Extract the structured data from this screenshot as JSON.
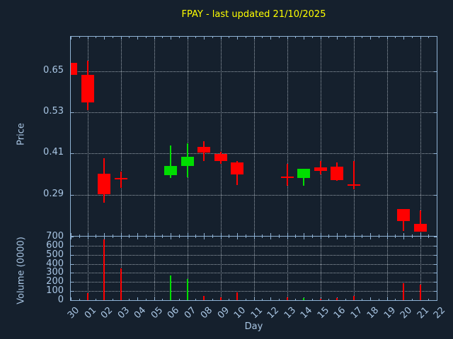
{
  "chart_data": {
    "type": "candlestick_with_volume",
    "title": "FPAY - last updated 21/10/2025",
    "xlabel": "Day",
    "ylabel": "Price",
    "volume_ylabel": "Volume (0000)",
    "x_labels": [
      "30",
      "01",
      "02",
      "03",
      "04",
      "05",
      "06",
      "07",
      "08",
      "09",
      "10",
      "11",
      "12",
      "13",
      "14",
      "15",
      "16",
      "17",
      "18",
      "19",
      "20",
      "21",
      "22"
    ],
    "grid_days": [
      "01",
      "03",
      "05",
      "07",
      "09",
      "11",
      "13",
      "15",
      "17",
      "19",
      "21"
    ],
    "price_axis": {
      "ticks": [
        0.29,
        0.41,
        0.53,
        0.65
      ],
      "range": [
        0.17,
        0.75
      ],
      "grid": true
    },
    "volume_axis": {
      "ticks": [
        0,
        100,
        200,
        300,
        400,
        500,
        600,
        700
      ],
      "gridlines": [
        100,
        200,
        300,
        400,
        500,
        600
      ],
      "range": [
        0,
        700
      ],
      "grid": true
    },
    "series": [
      {
        "day": "30",
        "open": 0.674,
        "high": 0.674,
        "low": 0.638,
        "close": 0.638,
        "volume": 0,
        "direction": "down"
      },
      {
        "day": "01",
        "open": 0.638,
        "high": 0.681,
        "low": 0.537,
        "close": 0.559,
        "volume": 75,
        "direction": "down"
      },
      {
        "day": "02",
        "open": 0.35,
        "high": 0.397,
        "low": 0.267,
        "close": 0.292,
        "volume": 670,
        "direction": "down"
      },
      {
        "day": "03",
        "open": 0.338,
        "high": 0.358,
        "low": 0.309,
        "close": 0.336,
        "volume": 350,
        "direction": "down"
      },
      {
        "day": "06",
        "open": 0.346,
        "high": 0.433,
        "low": 0.338,
        "close": 0.374,
        "volume": 270,
        "direction": "up"
      },
      {
        "day": "07",
        "open": 0.374,
        "high": 0.439,
        "low": 0.34,
        "close": 0.401,
        "volume": 230,
        "direction": "up"
      },
      {
        "day": "08",
        "open": 0.43,
        "high": 0.445,
        "low": 0.388,
        "close": 0.413,
        "volume": 45,
        "direction": "down"
      },
      {
        "day": "09",
        "open": 0.409,
        "high": 0.414,
        "low": 0.38,
        "close": 0.387,
        "volume": 30,
        "direction": "down"
      },
      {
        "day": "10",
        "open": 0.384,
        "high": 0.389,
        "low": 0.319,
        "close": 0.348,
        "volume": 85,
        "direction": "down"
      },
      {
        "day": "13",
        "open": 0.343,
        "high": 0.38,
        "low": 0.316,
        "close": 0.341,
        "volume": 30,
        "direction": "down"
      },
      {
        "day": "14",
        "open": 0.338,
        "high": 0.365,
        "low": 0.316,
        "close": 0.365,
        "volume": 25,
        "direction": "up"
      },
      {
        "day": "15",
        "open": 0.37,
        "high": 0.388,
        "low": 0.348,
        "close": 0.359,
        "volume": 15,
        "direction": "down"
      },
      {
        "day": "16",
        "open": 0.372,
        "high": 0.384,
        "low": 0.33,
        "close": 0.333,
        "volume": 25,
        "direction": "down"
      },
      {
        "day": "17",
        "open": 0.321,
        "high": 0.388,
        "low": 0.306,
        "close": 0.319,
        "volume": 45,
        "direction": "down"
      },
      {
        "day": "20",
        "open": 0.249,
        "high": 0.249,
        "low": 0.184,
        "close": 0.214,
        "volume": 185,
        "direction": "down"
      },
      {
        "day": "21",
        "open": 0.204,
        "high": 0.245,
        "low": 0.182,
        "close": 0.182,
        "volume": 175,
        "direction": "down"
      }
    ],
    "colors": {
      "up": "#00dd00",
      "down": "#ff0000",
      "background": "#15202d",
      "frame": "#8fb2d4",
      "grid": "#99a3ad",
      "tick_label": "#a9c6e4",
      "title": "#ffff00"
    }
  }
}
